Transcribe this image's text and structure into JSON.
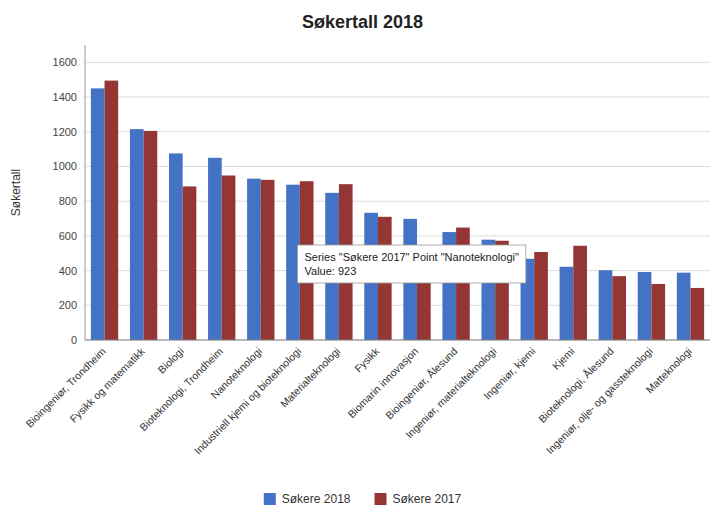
{
  "chart_data": {
    "type": "bar",
    "title": "Søkertall 2018",
    "ylabel": "Søkertall",
    "categories": [
      "Bioingeniør, Trondheim",
      "Fysikk og matematikk",
      "Biologi",
      "Bioteknologi, Trondheim",
      "Nanoteknologi",
      "Industriell kjemi og bioteknologi",
      "Materialteknologi",
      "Fysikk",
      "Biomarin innovasjon",
      "Bioingeniør, Ålesund",
      "Ingeniør, materialteknologi",
      "Ingeniør, kjemi",
      "Kjemi",
      "Bioteknologi, Ålesund",
      "Ingeniør, olje- og gassteknologi",
      "Matteknologi"
    ],
    "series": [
      {
        "name": "Søkere 2018",
        "color": "#4472C4",
        "values": [
          1450,
          1215,
          1075,
          1050,
          930,
          895,
          848,
          733,
          698,
          622,
          578,
          468,
          422,
          402,
          392,
          388
        ]
      },
      {
        "name": "Søkere 2017",
        "color": "#943634",
        "values": [
          1495,
          1205,
          885,
          948,
          923,
          915,
          898,
          710,
          528,
          648,
          572,
          507,
          543,
          368,
          323,
          300
        ]
      }
    ],
    "ylim": [
      0,
      1700
    ],
    "yticks": [
      0,
      200,
      400,
      600,
      800,
      1000,
      1200,
      1400,
      1600
    ],
    "grid": true,
    "legend": "bottom",
    "annotation": "Series \"Søkere 2017\" Point \"Nanoteknologi\"\nValue: 923"
  }
}
